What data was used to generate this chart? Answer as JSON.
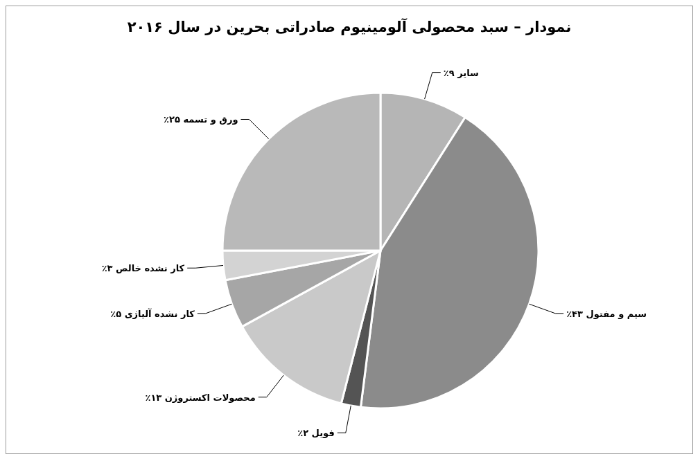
{
  "chart_data": {
    "type": "pie",
    "title": "نمودار – سبد محصولی آلومینیوم صادراتی بحرین در سال ۲۰۱۶",
    "categories": [
      "سایر",
      "سیم و مفتول",
      "فویل",
      "محصولات اکستروژن",
      "کار نشده آلیاژی",
      "کار نشده خالص",
      "ورق و تسمه"
    ],
    "values": [
      9,
      43,
      2,
      13,
      5,
      3,
      25
    ],
    "value_labels": [
      "۹٪",
      "۴۳٪",
      "۲٪",
      "۱۳٪",
      "۵٪",
      "۳٪",
      "۲۵٪"
    ],
    "colors": [
      "#b5b5b5",
      "#8b8b8b",
      "#545454",
      "#c9c9c9",
      "#a6a6a6",
      "#d3d3d3",
      "#b9b9b9"
    ],
    "legend": false
  }
}
